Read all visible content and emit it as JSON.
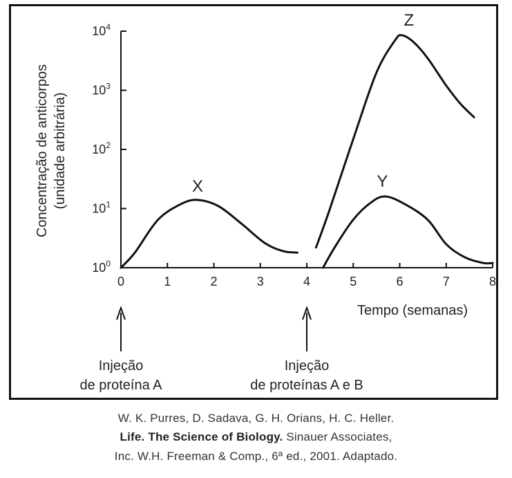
{
  "chart_data": {
    "type": "line",
    "ylabel_line1": "Concentração de anticorpos",
    "ylabel_line2": "(unidade arbitrária)",
    "xlabel": "Tempo (semanas)",
    "y_scale": "log",
    "xlim": [
      0,
      8
    ],
    "ylim": [
      1,
      10000
    ],
    "x_ticks": [
      "0",
      "1",
      "2",
      "3",
      "4",
      "5",
      "6",
      "7",
      "8"
    ],
    "y_ticks": [
      {
        "base": "10",
        "exp": "0",
        "value": 1
      },
      {
        "base": "10",
        "exp": "1",
        "value": 10
      },
      {
        "base": "10",
        "exp": "2",
        "value": 100
      },
      {
        "base": "10",
        "exp": "3",
        "value": 1000
      },
      {
        "base": "10",
        "exp": "4",
        "value": 10000
      }
    ],
    "series": [
      {
        "name": "X",
        "x": [
          0,
          0.3,
          0.8,
          1.3,
          1.65,
          2.1,
          2.6,
          3.1,
          3.5,
          3.8
        ],
        "y": [
          1,
          1.8,
          6.5,
          12,
          14,
          11,
          5.5,
          2.6,
          1.9,
          1.8
        ]
      },
      {
        "name": "Z",
        "x": [
          4.2,
          4.5,
          5.0,
          5.5,
          5.9,
          6.05,
          6.3,
          6.6,
          7.0,
          7.3,
          7.6
        ],
        "y": [
          2.2,
          10,
          150,
          2000,
          7000,
          8500,
          6500,
          3500,
          1200,
          600,
          350
        ]
      },
      {
        "name": "Y",
        "x": [
          4.35,
          4.6,
          5.0,
          5.4,
          5.7,
          6.1,
          6.6,
          7.0,
          7.4,
          7.8,
          8.0
        ],
        "y": [
          1,
          2.2,
          6.5,
          13,
          16,
          12,
          6.5,
          2.5,
          1.5,
          1.2,
          1.2
        ]
      }
    ],
    "annotations": [
      {
        "line1": "Injeção",
        "line2": "de proteína A",
        "x": 0
      },
      {
        "line1": "Injeção",
        "line2": "de proteínas A e B",
        "x": 4
      }
    ]
  },
  "caption": {
    "line1": "W. K. Purres, D. Sadava, G. H. Orians, H. C. Heller.",
    "line2_bold": "Life. The Science of Biology.",
    "line2_rest": " Sinauer Associates,",
    "line3": "Inc. W.H. Freeman & Comp., 6ª ed., 2001. Adaptado."
  }
}
